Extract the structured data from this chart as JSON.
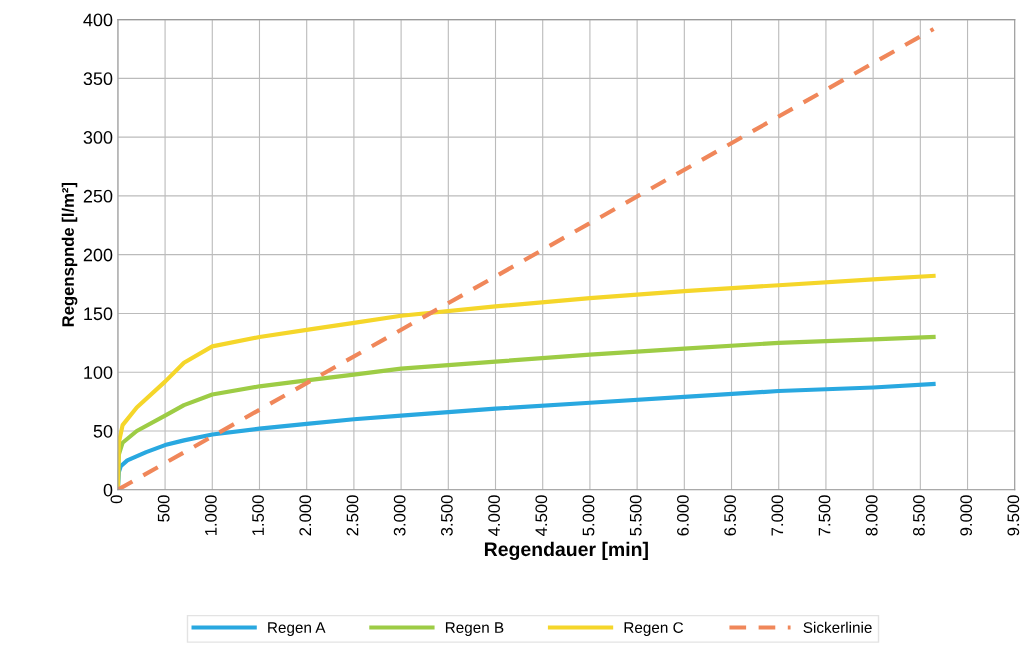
{
  "chart_data": {
    "type": "line",
    "xlabel": "Regendauer [min]",
    "ylabel": "Regenspnde [l/m²]",
    "xlim": [
      0,
      9500
    ],
    "ylim": [
      0,
      400
    ],
    "xticks": [
      0,
      500,
      {
        "value": 1000,
        "label": "1.000"
      },
      {
        "value": 1500,
        "label": "1.500"
      },
      {
        "value": 2000,
        "label": "2.000"
      },
      {
        "value": 2500,
        "label": "2.500"
      },
      {
        "value": 3000,
        "label": "3.000"
      },
      {
        "value": 3500,
        "label": "3.500"
      },
      {
        "value": 4000,
        "label": "4.000"
      },
      {
        "value": 4500,
        "label": "4.500"
      },
      {
        "value": 5000,
        "label": "5.000"
      },
      {
        "value": 5500,
        "label": "5.500"
      },
      {
        "value": 6000,
        "label": "6.000"
      },
      {
        "value": 6500,
        "label": "6.500"
      },
      {
        "value": 7000,
        "label": "7.000"
      },
      {
        "value": 7500,
        "label": "7.500"
      },
      {
        "value": 8000,
        "label": "8.000"
      },
      {
        "value": 8500,
        "label": "8.500"
      },
      {
        "value": 9000,
        "label": "9.000"
      },
      {
        "value": 9500,
        "label": "9.500"
      }
    ],
    "yticks": [
      0,
      50,
      100,
      150,
      200,
      250,
      300,
      350,
      400
    ],
    "grid": true,
    "legend": "bottom",
    "marker": "none",
    "series": [
      {
        "name": "Regen A",
        "color": "#29a8e0",
        "line_style": "solid",
        "x": [
          0,
          10,
          30,
          100,
          300,
          500,
          700,
          1000,
          1500,
          2000,
          2500,
          3000,
          4000,
          5000,
          6000,
          7000,
          8000,
          8640
        ],
        "values": [
          0,
          15,
          20,
          25,
          32,
          38,
          42,
          47,
          52,
          56,
          60,
          63,
          69,
          74,
          79,
          84,
          87,
          90
        ]
      },
      {
        "name": "Regen B",
        "color": "#9dcc45",
        "line_style": "solid",
        "x": [
          0,
          10,
          50,
          200,
          500,
          700,
          1000,
          1500,
          2000,
          2500,
          3000,
          4000,
          5000,
          6000,
          7000,
          8000,
          8640
        ],
        "values": [
          0,
          30,
          40,
          50,
          63,
          72,
          81,
          88,
          93,
          98,
          103,
          109,
          115,
          120,
          125,
          128,
          130
        ]
      },
      {
        "name": "Regen C",
        "color": "#f5d62a",
        "line_style": "solid",
        "x": [
          0,
          10,
          50,
          200,
          500,
          700,
          1000,
          1500,
          2000,
          2500,
          3000,
          4000,
          5000,
          6000,
          7000,
          8000,
          8640
        ],
        "values": [
          0,
          40,
          55,
          70,
          92,
          108,
          122,
          130,
          136,
          142,
          148,
          156,
          163,
          169,
          174,
          179,
          182
        ]
      },
      {
        "name": "Sickerlinie",
        "color": "#f0875a",
        "line_style": "dashed",
        "x": [
          0,
          8640
        ],
        "values": [
          0,
          392
        ]
      }
    ]
  }
}
